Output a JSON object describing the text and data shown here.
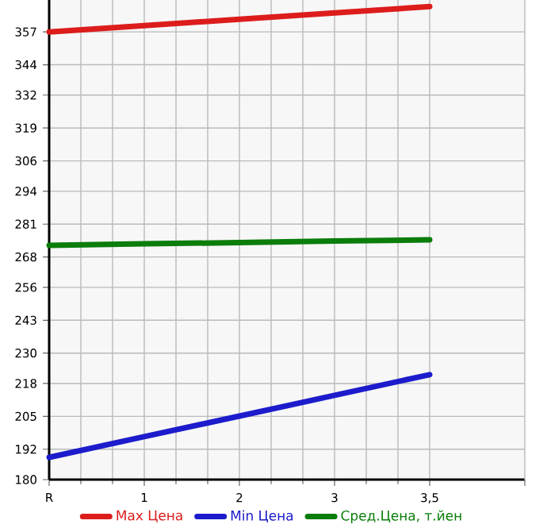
{
  "chart_data": {
    "type": "line",
    "categories": [
      "R",
      "1",
      "2",
      "3",
      "3,5"
    ],
    "series": [
      {
        "name": "Max Цена",
        "color": "#dd1c1c",
        "values": [
          357,
          359.5,
          362,
          364.5,
          367
        ]
      },
      {
        "name": "Min Цена",
        "color": "#1c1ccc",
        "values": [
          188.8,
          197,
          205.1,
          213.3,
          221.5
        ]
      },
      {
        "name": "Сред.Цена, т.йен",
        "color": "#0a7d0a",
        "values": [
          272.6,
          273.2,
          273.7,
          274.3,
          274.8
        ]
      }
    ],
    "ylim": [
      180,
      369.6
    ],
    "yticks": [
      180,
      192,
      205,
      218,
      230,
      243,
      256,
      268,
      281,
      294,
      306,
      319,
      332,
      344,
      357
    ],
    "grid": true,
    "legend": "bottom",
    "marker": "none",
    "line_style": "solid"
  }
}
